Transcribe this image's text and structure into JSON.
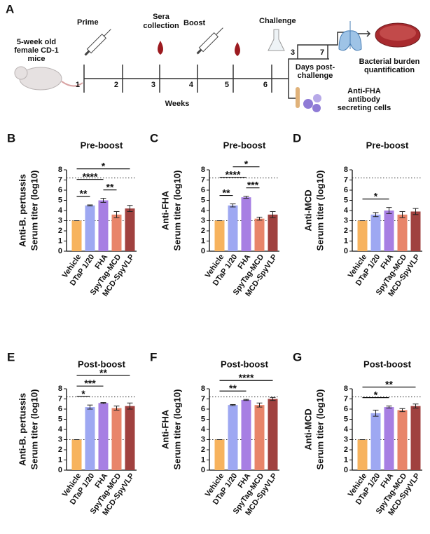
{
  "schematic": {
    "letter": "A",
    "prime": "Prime",
    "sera": [
      "Sera",
      "collection"
    ],
    "boost": "Boost",
    "challenge": "Challenge",
    "mice": [
      "5-week old",
      "female CD-1",
      "mice"
    ],
    "weeks": [
      1,
      2,
      3,
      4,
      5,
      6
    ],
    "weeks_label": "Weeks",
    "days": [
      3,
      7
    ],
    "days_label": [
      "Days post-",
      "challenge"
    ],
    "burden": [
      "Bacterial burden",
      "quantification"
    ],
    "asc": [
      "Anti-FHA",
      "antibody",
      "secreting cells"
    ]
  },
  "chart_data": [
    {
      "type": "bar",
      "letter": "B",
      "title": "Pre-boost",
      "ylabel": [
        "Anti-B. pertussis",
        "Serum titer (log10)"
      ],
      "categories": [
        "Vehicle",
        "DTaP 1/20",
        "FHA",
        "SpyTag-MCD",
        "MCD-SpyVLP"
      ],
      "values": [
        3,
        4.5,
        5.0,
        3.6,
        4.2
      ],
      "errors": [
        0,
        0.05,
        0.2,
        0.3,
        0.3
      ],
      "colors": [
        "#f7b35e",
        "#9ea8f2",
        "#a77fe3",
        "#e8856a",
        "#a0413f"
      ],
      "ylim": [
        0,
        8
      ],
      "yticks": [
        0,
        1,
        2,
        3,
        4,
        5,
        6,
        7,
        8
      ],
      "hlines": [
        7.2,
        3
      ],
      "significance": [
        {
          "label": "**",
          "between": [
            "Vehicle",
            "DTaP 1/20"
          ]
        },
        {
          "label": "**",
          "between": [
            "FHA",
            "SpyTag-MCD"
          ]
        },
        {
          "label": "****",
          "between": [
            "Vehicle",
            "FHA"
          ]
        },
        {
          "label": "*",
          "between": [
            "Vehicle",
            "MCD-SpyVLP"
          ]
        }
      ]
    },
    {
      "type": "bar",
      "letter": "C",
      "title": "Pre-boost",
      "ylabel": [
        "Anti-FHA",
        "Serum titer (log10)"
      ],
      "categories": [
        "Vehicle",
        "DTaP 1/20",
        "FHA",
        "SpyTag-MCD",
        "MCD-SpyVLP"
      ],
      "values": [
        3,
        4.5,
        5.3,
        3.2,
        3.6
      ],
      "errors": [
        0,
        0.15,
        0.1,
        0.15,
        0.3
      ],
      "colors": [
        "#f7b35e",
        "#9ea8f2",
        "#a77fe3",
        "#e8856a",
        "#a0413f"
      ],
      "ylim": [
        0,
        8
      ],
      "yticks": [
        0,
        1,
        2,
        3,
        4,
        5,
        6,
        7,
        8
      ],
      "hlines": [
        7.2,
        3
      ],
      "significance": [
        {
          "label": "**",
          "between": [
            "Vehicle",
            "DTaP 1/20"
          ]
        },
        {
          "label": "***",
          "between": [
            "FHA",
            "SpyTag-MCD"
          ]
        },
        {
          "label": "****",
          "between": [
            "Vehicle",
            "FHA"
          ]
        },
        {
          "label": "*",
          "between": [
            "DTaP 1/20",
            "SpyTag-MCD"
          ]
        }
      ]
    },
    {
      "type": "bar",
      "letter": "D",
      "title": "Pre-boost",
      "ylabel": [
        "Anti-MCD",
        "Serum titer (log10)"
      ],
      "categories": [
        "Vehicle",
        "DTaP 1/20",
        "FHA",
        "SpyTag-MCD",
        "MCD-SpyVLP"
      ],
      "values": [
        3,
        3.6,
        4.0,
        3.6,
        3.9
      ],
      "errors": [
        0,
        0.2,
        0.3,
        0.3,
        0.3
      ],
      "colors": [
        "#f7b35e",
        "#9ea8f2",
        "#a77fe3",
        "#e8856a",
        "#a0413f"
      ],
      "ylim": [
        0,
        8
      ],
      "yticks": [
        0,
        1,
        2,
        3,
        4,
        5,
        6,
        7,
        8
      ],
      "hlines": [
        7.2,
        3
      ],
      "significance": [
        {
          "label": "*",
          "between": [
            "Vehicle",
            "FHA"
          ]
        }
      ]
    },
    {
      "type": "bar",
      "letter": "E",
      "title": "Post-boost",
      "ylabel": [
        "Anti-B. pertussis",
        "Serum titer (log10)"
      ],
      "categories": [
        "Vehicle",
        "DTaP 1/20",
        "FHA",
        "SpyTag-MCD",
        "MCD-SpyVLP"
      ],
      "values": [
        3,
        6.2,
        6.6,
        6.1,
        6.3
      ],
      "errors": [
        0,
        0.2,
        0.05,
        0.2,
        0.3
      ],
      "colors": [
        "#f7b35e",
        "#9ea8f2",
        "#a77fe3",
        "#e8856a",
        "#a0413f"
      ],
      "ylim": [
        0,
        8
      ],
      "yticks": [
        0,
        1,
        2,
        3,
        4,
        5,
        6,
        7,
        8
      ],
      "hlines": [
        7.2,
        3
      ],
      "significance": [
        {
          "label": "*",
          "between": [
            "Vehicle",
            "DTaP 1/20"
          ]
        },
        {
          "label": "***",
          "between": [
            "Vehicle",
            "FHA"
          ]
        },
        {
          "label": "**",
          "between": [
            "Vehicle",
            "MCD-SpyVLP"
          ]
        }
      ]
    },
    {
      "type": "bar",
      "letter": "F",
      "title": "Post-boost",
      "ylabel": [
        "Anti-FHA",
        "Serum titer (log10)"
      ],
      "categories": [
        "Vehicle",
        "DTaP 1/20",
        "FHA",
        "SpyTag-MCD",
        "MCD-SpyVLP"
      ],
      "values": [
        3,
        6.4,
        6.9,
        6.4,
        7.0
      ],
      "errors": [
        0,
        0.05,
        0.05,
        0.2,
        0.15
      ],
      "colors": [
        "#f7b35e",
        "#9ea8f2",
        "#a77fe3",
        "#e8856a",
        "#a0413f"
      ],
      "ylim": [
        0,
        8
      ],
      "yticks": [
        0,
        1,
        2,
        3,
        4,
        5,
        6,
        7,
        8
      ],
      "hlines": [
        7.2,
        3
      ],
      "significance": [
        {
          "label": "**",
          "between": [
            "Vehicle",
            "FHA"
          ]
        },
        {
          "label": "****",
          "between": [
            "Vehicle",
            "MCD-SpyVLP"
          ]
        }
      ]
    },
    {
      "type": "bar",
      "letter": "G",
      "title": "Post-boost",
      "ylabel": [
        "Anti-MCD",
        "Serum titer (log10)"
      ],
      "categories": [
        "Vehicle",
        "DTaP 1/20",
        "FHA",
        "SpyTag-MCD",
        "MCD-SpyVLP"
      ],
      "values": [
        3,
        5.6,
        6.2,
        5.9,
        6.3
      ],
      "errors": [
        0,
        0.3,
        0.1,
        0.15,
        0.2
      ],
      "colors": [
        "#f7b35e",
        "#9ea8f2",
        "#a77fe3",
        "#e8856a",
        "#a0413f"
      ],
      "ylim": [
        0,
        8
      ],
      "yticks": [
        0,
        1,
        2,
        3,
        4,
        5,
        6,
        7,
        8
      ],
      "hlines": [
        7.2,
        3
      ],
      "significance": [
        {
          "label": "*",
          "between": [
            "Vehicle",
            "FHA"
          ]
        },
        {
          "label": "**",
          "between": [
            "Vehicle",
            "MCD-SpyVLP"
          ]
        }
      ]
    }
  ]
}
